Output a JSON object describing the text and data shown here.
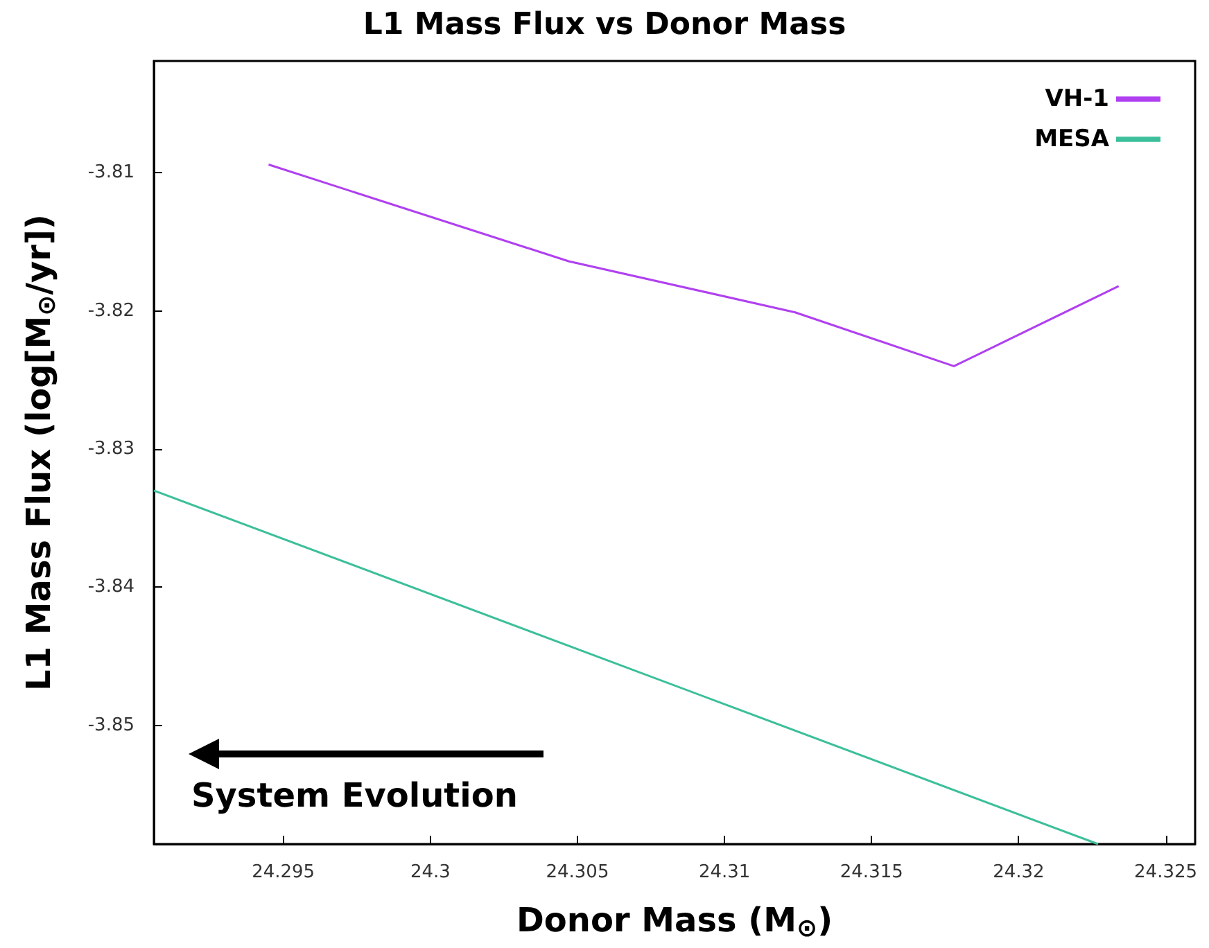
{
  "chart_data": {
    "type": "line",
    "title": "L1 Mass Flux vs Donor Mass",
    "xlabel": "Donor Mass (M$_{⊙}$)",
    "ylabel": "L1 Mass Flux (log[M$_{⊙}$/yr])",
    "annotations": [
      "System Evolution"
    ],
    "xlim": [
      24.2906,
      24.326
    ],
    "xticks": [
      24.295,
      24.3,
      24.305,
      24.31,
      24.315,
      24.32,
      24.325
    ],
    "ylim": [
      -3.8586,
      -3.8019
    ],
    "yticks": [
      -3.85,
      -3.84,
      -3.83,
      -3.82,
      -3.81
    ],
    "series": [
      {
        "name": "VH-1",
        "color": "#b040f0",
        "x": [
          24.2945,
          24.3047,
          24.3124,
          24.3178,
          24.3234
        ],
        "values": [
          -3.8094,
          -3.8164,
          -3.8201,
          -3.824,
          -3.8182
        ]
      },
      {
        "name": "MESA",
        "color": "#3cbf9a",
        "x": [
          24.2906,
          24.3227
        ],
        "values": [
          -3.833,
          -3.8586
        ]
      }
    ],
    "legend": "top right",
    "grid": false,
    "marker": "none",
    "line_style": "solid"
  }
}
